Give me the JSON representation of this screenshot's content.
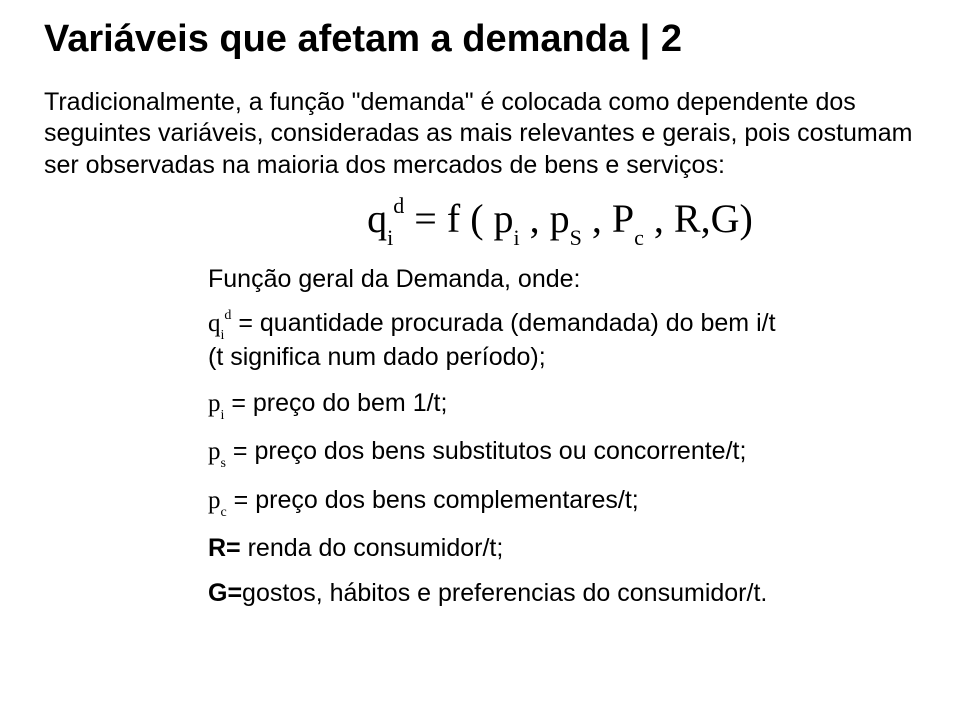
{
  "title": "Variáveis que afetam a demanda | 2",
  "intro": "Tradicionalmente, a função \"demanda\" é colocada como dependente dos seguintes variáveis, consideradas as mais relevantes e gerais, pois costumam ser observadas na maioria dos mercados de bens e serviços:",
  "formula": {
    "lhs_base": "q",
    "lhs_sub": "i",
    "lhs_sup": "d",
    "eq": " = ",
    "f": "f",
    "open": " ( ",
    "a1_base": "p",
    "a1_sub": "i",
    "sep": " , ",
    "a2_base": "p",
    "a2_sub": "S",
    "a3_base": "P",
    "a3_sub": "c",
    "r": "R",
    "g": "G",
    "close": ")",
    "comma": ","
  },
  "def_head": "Função geral da Demanda, onde:",
  "defs": {
    "d1": {
      "sym_base": "q",
      "sym_sub": "i",
      "sym_sup": "d",
      "eq": " = ",
      "text1": "quantidade procurada (demandada) do bem i/t",
      "text2": "(t significa num dado período);"
    },
    "d2": {
      "sym_base": "p",
      "sym_sub": "i",
      "eq": " = ",
      "text": "preço do bem 1/t;"
    },
    "d3": {
      "sym_base": "p",
      "sym_sub": "s",
      "eq": " = ",
      "text": "preço dos bens substitutos ou concorrente/t;"
    },
    "d4": {
      "sym_base": "p",
      "sym_sub": "c",
      "eq": " = ",
      "text": "preço dos bens complementares/t;"
    },
    "d5": {
      "label": "R= ",
      "text": "renda do consumidor/t;"
    },
    "d6": {
      "label": "G=",
      "text": "gostos, hábitos e preferencias do consumidor/t."
    }
  }
}
